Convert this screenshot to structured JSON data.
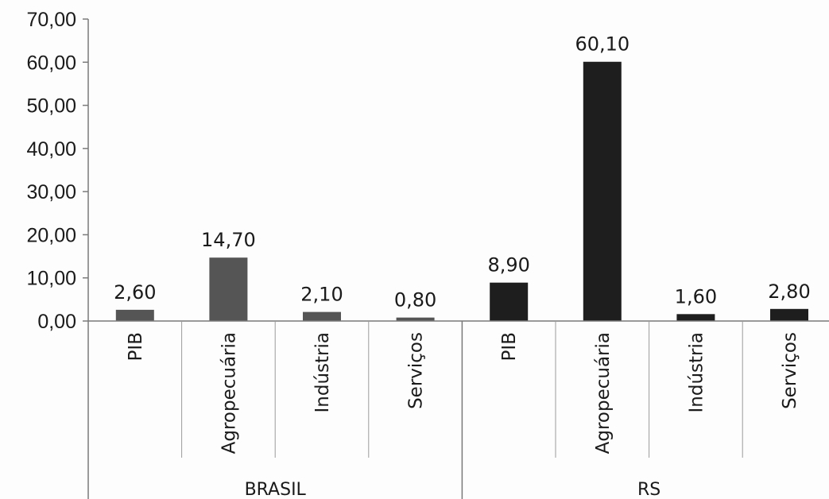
{
  "chart_data": {
    "type": "bar",
    "y_ticks": [
      "0,00",
      "10,00",
      "20,00",
      "30,00",
      "40,00",
      "50,00",
      "60,00",
      "70,00"
    ],
    "ylim": [
      0,
      70
    ],
    "grid": false,
    "groups": [
      {
        "name": "BRASIL",
        "color": "#555555",
        "categories": [
          "PIB",
          "Agropecuária",
          "Indústria",
          "Serviços"
        ],
        "values": [
          2.6,
          14.7,
          2.1,
          0.8
        ],
        "labels": [
          "2,60",
          "14,70",
          "2,10",
          "0,80"
        ]
      },
      {
        "name": "RS",
        "color": "#1e1e1e",
        "categories": [
          "PIB",
          "Agropecuária",
          "Indústria",
          "Serviços"
        ],
        "values": [
          8.9,
          60.1,
          1.6,
          2.8
        ],
        "labels": [
          "8,90",
          "60,10",
          "1,60",
          "2,80"
        ]
      }
    ]
  }
}
